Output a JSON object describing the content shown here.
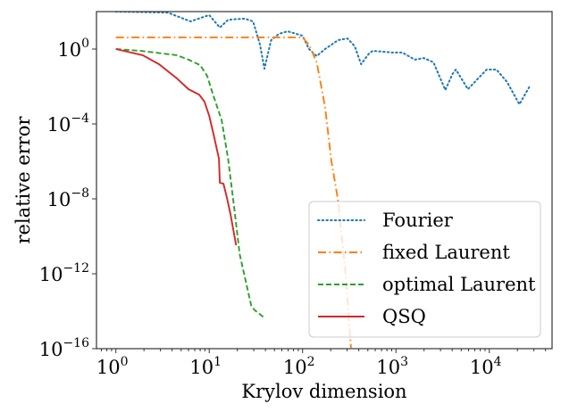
{
  "chart_data": {
    "type": "line",
    "title": "",
    "xlabel": "Krylov dimension",
    "ylabel": "relative error",
    "xscale": "log",
    "yscale": "log",
    "xlim": [
      0.62,
      47000
    ],
    "ylim": [
      1e-16,
      100
    ],
    "grid": false,
    "legend_position": "bottom-right",
    "x_ticks": [
      {
        "value": 1,
        "base": "10",
        "exp": "0"
      },
      {
        "value": 10,
        "base": "10",
        "exp": "1"
      },
      {
        "value": 100,
        "base": "10",
        "exp": "2"
      },
      {
        "value": 1000,
        "base": "10",
        "exp": "3"
      },
      {
        "value": 10000,
        "base": "10",
        "exp": "4"
      }
    ],
    "y_ticks": [
      {
        "value": 1,
        "base": "10",
        "exp": "0"
      },
      {
        "value": 0.0001,
        "base": "10",
        "exp": "−4"
      },
      {
        "value": 1e-08,
        "base": "10",
        "exp": "−8"
      },
      {
        "value": 1e-12,
        "base": "10",
        "exp": "−12"
      },
      {
        "value": 1e-16,
        "base": "10",
        "exp": "−16"
      }
    ],
    "series": [
      {
        "name": "Fourier",
        "color": "#1f77b4",
        "style": "dotted",
        "x": [
          1,
          3.6,
          6.3,
          10,
          13,
          16,
          24,
          29.5,
          35,
          39,
          46,
          56,
          69,
          100,
          117,
          142,
          174,
          240,
          303,
          362,
          423,
          515,
          563,
          917,
          1170,
          1590,
          1990,
          2520,
          3380,
          4040,
          4380,
          5900,
          9370,
          11900,
          15500,
          21000,
          27000
        ],
        "y": [
          100,
          89,
          30,
          65,
          14,
          37,
          42,
          30,
          1.7,
          0.089,
          3.0,
          6.5,
          8.9,
          5.1,
          1.0,
          0.42,
          1.0,
          3.0,
          3.7,
          1.4,
          0.155,
          0.58,
          0.8,
          0.65,
          0.65,
          0.27,
          0.33,
          0.195,
          0.0065,
          0.047,
          0.08,
          0.0072,
          0.08,
          0.08,
          0.0174,
          0.00112,
          0.01
        ]
      },
      {
        "name": "fixed Laurent",
        "color": "#ff7f0e",
        "style": "dashdot",
        "x": [
          1,
          100,
          117,
          142,
          174,
          203,
          240,
          290,
          330
        ],
        "y": [
          4.2,
          4.2,
          1.7,
          0.195,
          0.00079,
          1.1e-06,
          7.9e-09,
          7.9e-13,
          1.1e-16
        ]
      },
      {
        "name": "optimal Laurent",
        "color": "#2ca02c",
        "style": "dashed",
        "x": [
          1,
          1.86,
          4.5,
          6.0,
          8.0,
          9.5,
          10.9,
          13.6,
          15.9,
          18.6,
          21.2,
          28.2,
          30.9,
          38.5
        ],
        "y": [
          1,
          0.79,
          0.47,
          0.27,
          0.138,
          0.037,
          0.0042,
          0.000155,
          1.4e-06,
          2.7e-09,
          1.1e-11,
          1.95e-14,
          1.1e-14,
          4.7e-15
        ]
      },
      {
        "name": "QSQ",
        "color": "#d62728",
        "style": "solid",
        "x": [
          1,
          1.94,
          2.9,
          4.5,
          6.0,
          7.8,
          8.9,
          10,
          11.1,
          12.7,
          13.0,
          14.2,
          15.5,
          16.9,
          19.4
        ],
        "y": [
          1,
          0.47,
          0.155,
          0.027,
          0.0072,
          0.0037,
          0.00155,
          0.00027,
          3e-05,
          1.4e-06,
          7.2e-08,
          6.5e-08,
          1.1e-08,
          1.55e-09,
          3.3e-11
        ]
      }
    ]
  }
}
